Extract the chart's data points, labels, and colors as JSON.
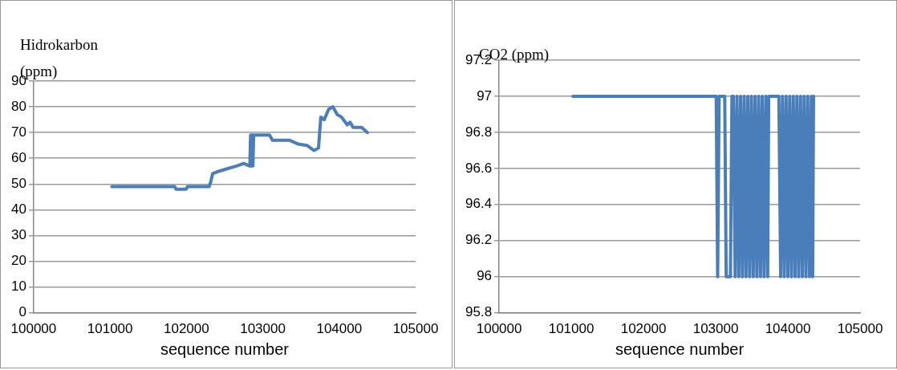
{
  "chart_data": [
    {
      "type": "line",
      "ylabel": "Hidrokarbon (ppm)",
      "xlabel": "sequence number",
      "xlim": [
        100000,
        105000
      ],
      "xticks": [
        100000,
        101000,
        102000,
        103000,
        104000,
        105000
      ],
      "ylim": [
        0,
        90
      ],
      "yticks": [
        0,
        10,
        20,
        30,
        40,
        50,
        60,
        70,
        80,
        90
      ],
      "grid": "y",
      "legend": false,
      "marker": "none",
      "line_style": "solid",
      "series": [
        {
          "color": "#4a7ebb",
          "x": [
            101024,
            101846,
            101865,
            101996,
            102015,
            102298,
            102320,
            102343,
            102429,
            102542,
            102655,
            102750,
            102830,
            102840,
            102845,
            102850,
            102855,
            102862,
            102870,
            102880,
            102938,
            103088,
            103126,
            103240,
            103352,
            103465,
            103578,
            103672,
            103729,
            103759,
            103804,
            103861,
            103917,
            103974,
            104030,
            104105,
            104143,
            104181,
            104294,
            104369
          ],
          "values": [
            49,
            49,
            48,
            48,
            49,
            49,
            51,
            54,
            55,
            56,
            57,
            58,
            57,
            69,
            57,
            69,
            57,
            69,
            57,
            69,
            69,
            69,
            67,
            67,
            67,
            65.5,
            65,
            63,
            64,
            76,
            75,
            79,
            80,
            77,
            76,
            73,
            74,
            72,
            72,
            70
          ]
        }
      ]
    },
    {
      "type": "line",
      "ylabel": "CO2 (ppm)",
      "xlabel": "sequence number",
      "xlim": [
        100000,
        105000
      ],
      "xticks": [
        100000,
        101000,
        102000,
        103000,
        104000,
        105000
      ],
      "ylim": [
        95.8,
        97.2
      ],
      "yticks": [
        95.8,
        96,
        96.2,
        96.4,
        96.6,
        96.8,
        97,
        97.2
      ],
      "grid": "y",
      "legend": false,
      "marker": "none",
      "line_style": "solid",
      "series": [
        {
          "color": "#4a7ebb",
          "x": [
            101022,
            103007,
            103027,
            103047,
            103125,
            103145,
            103165,
            103185,
            103204,
            103225,
            103245,
            103270,
            103295,
            103320,
            103345,
            103370,
            103395,
            103420,
            103445,
            103470,
            103495,
            103520,
            103545,
            103570,
            103595,
            103620,
            103645,
            103670,
            103695,
            103720,
            103734,
            103875,
            103900,
            103925,
            103950,
            103975,
            104000,
            104025,
            104050,
            104075,
            104100,
            104125,
            104150,
            104175,
            104200,
            104225,
            104250,
            104275,
            104300,
            104325,
            104343,
            104355
          ],
          "values": [
            97,
            97,
            96,
            97,
            97,
            96,
            96,
            96,
            96,
            97,
            97,
            96,
            97,
            96,
            97,
            96,
            97,
            96,
            97,
            96,
            97,
            96,
            97,
            96,
            97,
            96,
            97,
            96,
            97,
            96,
            97,
            97,
            96,
            97,
            96,
            97,
            96,
            97,
            96,
            97,
            96,
            97,
            96,
            97,
            96,
            97,
            96,
            97,
            96,
            97,
            96,
            97
          ]
        }
      ]
    }
  ]
}
